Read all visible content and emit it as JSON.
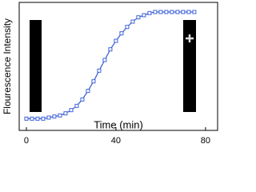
{
  "chart_data": {
    "type": "line",
    "x_label": "Time (min)",
    "y_label": "Flourescence Intensity",
    "x": [
      0,
      2.5,
      5,
      7.5,
      10,
      12.5,
      15,
      17.5,
      20,
      22.5,
      25,
      27.5,
      30,
      32.5,
      35,
      37.5,
      40,
      42.5,
      45,
      47.5,
      50,
      52.5,
      55,
      57.5,
      60,
      62.5,
      65,
      67.5,
      70,
      72.5,
      75
    ],
    "series": [
      {
        "color": "#3f63d8",
        "values": [
          0,
          0,
          0,
          0,
          0.01,
          0.02,
          0.03,
          0.05,
          0.08,
          0.12,
          0.18,
          0.26,
          0.35,
          0.45,
          0.55,
          0.65,
          0.73,
          0.8,
          0.86,
          0.91,
          0.95,
          0.97,
          0.99,
          1,
          1,
          1,
          1,
          1,
          1,
          1,
          1
        ]
      }
    ],
    "xlim": [
      -3.2,
      85.4
    ],
    "ylim": [
      -0.11,
      1.09
    ],
    "xticks": [
      0,
      40,
      80
    ]
  }
}
